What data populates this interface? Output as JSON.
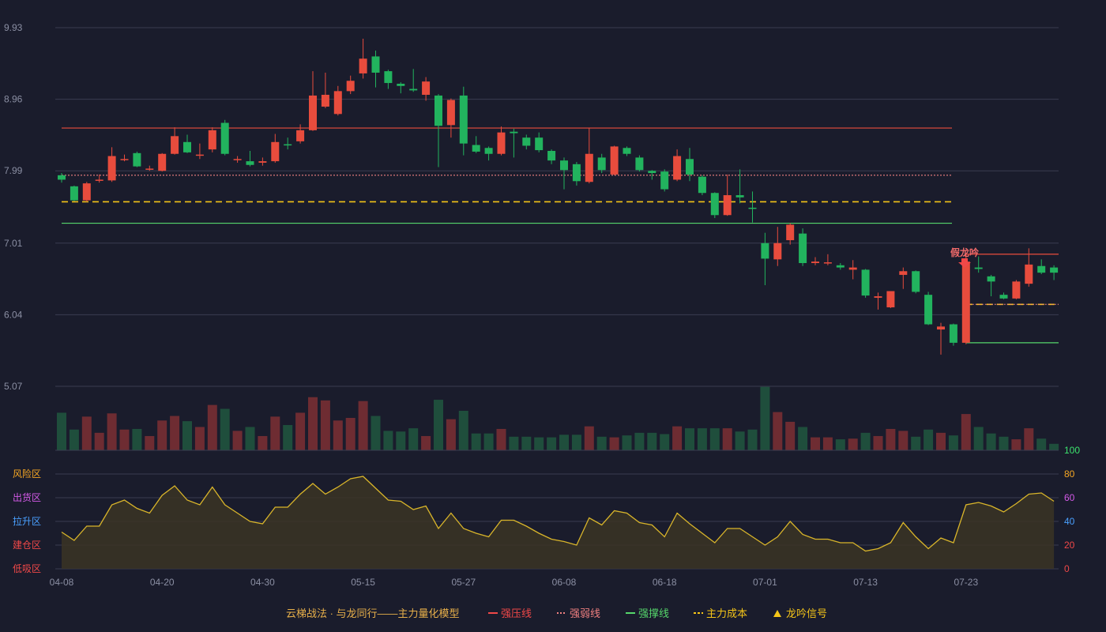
{
  "chart_data": {
    "type": "candlestick",
    "price_axis": {
      "ticks": [
        9.93,
        8.96,
        7.99,
        7.01,
        6.04,
        5.07
      ],
      "range": [
        5.07,
        9.93
      ]
    },
    "x_ticks": [
      "04-08",
      "04-20",
      "04-30",
      "05-15",
      "05-27",
      "06-08",
      "06-18",
      "07-01",
      "07-13",
      "07-23"
    ],
    "x_tick_index": [
      0,
      8,
      16,
      24,
      32,
      40,
      48,
      56,
      64,
      72
    ],
    "candles": [
      [
        7.93,
        7.87,
        7.96,
        7.83
      ],
      [
        7.78,
        7.59,
        7.79,
        7.58
      ],
      [
        7.59,
        7.82,
        7.84,
        7.57
      ],
      [
        7.86,
        7.87,
        7.94,
        7.83
      ],
      [
        7.86,
        8.19,
        8.31,
        7.84
      ],
      [
        8.15,
        8.15,
        8.21,
        8.12
      ],
      [
        8.23,
        8.05,
        8.25,
        8.04
      ],
      [
        8.02,
        8.02,
        8.06,
        7.99
      ],
      [
        7.99,
        8.22,
        8.23,
        7.98
      ],
      [
        8.22,
        8.46,
        8.58,
        8.21
      ],
      [
        8.38,
        8.24,
        8.48,
        8.23
      ],
      [
        8.2,
        8.21,
        8.36,
        8.15
      ],
      [
        8.28,
        8.54,
        8.58,
        8.24
      ],
      [
        8.64,
        8.22,
        8.68,
        8.2
      ],
      [
        8.15,
        8.15,
        8.19,
        8.1
      ],
      [
        8.12,
        8.07,
        8.26,
        8.05
      ],
      [
        8.1,
        8.12,
        8.17,
        8.06
      ],
      [
        8.12,
        8.38,
        8.49,
        8.1
      ],
      [
        8.35,
        8.34,
        8.44,
        8.28
      ],
      [
        8.39,
        8.54,
        8.62,
        8.36
      ],
      [
        8.54,
        9.01,
        9.34,
        8.53
      ],
      [
        8.86,
        9.02,
        9.32,
        8.84
      ],
      [
        8.76,
        9.07,
        9.14,
        8.74
      ],
      [
        9.07,
        9.21,
        9.28,
        9.03
      ],
      [
        9.31,
        9.51,
        9.78,
        9.24
      ],
      [
        9.54,
        9.32,
        9.62,
        9.12
      ],
      [
        9.34,
        9.18,
        9.36,
        9.1
      ],
      [
        9.17,
        9.14,
        9.19,
        9.04
      ],
      [
        9.1,
        9.08,
        9.37,
        9.06
      ],
      [
        9.02,
        9.2,
        9.26,
        8.94
      ],
      [
        9.01,
        8.6,
        9.03,
        8.04
      ],
      [
        8.61,
        8.95,
        8.97,
        8.44
      ],
      [
        9.01,
        8.36,
        9.13,
        8.2
      ],
      [
        8.34,
        8.25,
        8.46,
        8.23
      ],
      [
        8.3,
        8.22,
        8.32,
        8.13
      ],
      [
        8.22,
        8.51,
        8.59,
        8.2
      ],
      [
        8.52,
        8.5,
        8.56,
        8.17
      ],
      [
        8.44,
        8.33,
        8.48,
        8.28
      ],
      [
        8.44,
        8.27,
        8.51,
        8.24
      ],
      [
        8.26,
        8.13,
        8.28,
        8.08
      ],
      [
        8.13,
        8.0,
        8.17,
        7.74
      ],
      [
        8.08,
        7.85,
        8.11,
        7.79
      ],
      [
        7.84,
        8.22,
        8.57,
        7.82
      ],
      [
        8.17,
        8.0,
        8.22,
        7.96
      ],
      [
        7.94,
        8.32,
        8.33,
        7.93
      ],
      [
        8.3,
        8.22,
        8.32,
        8.19
      ],
      [
        8.17,
        8.0,
        8.2,
        7.98
      ],
      [
        7.99,
        7.96,
        8.0,
        7.87
      ],
      [
        7.98,
        7.74,
        8.01,
        7.71
      ],
      [
        7.87,
        8.19,
        8.28,
        7.85
      ],
      [
        8.15,
        7.94,
        8.3,
        7.85
      ],
      [
        7.91,
        7.69,
        7.93,
        7.66
      ],
      [
        7.69,
        7.39,
        7.7,
        7.35
      ],
      [
        7.39,
        7.66,
        7.94,
        7.38
      ],
      [
        7.66,
        7.63,
        8.01,
        7.55
      ],
      [
        7.49,
        7.48,
        7.71,
        7.29
      ],
      [
        7.01,
        6.8,
        7.15,
        6.44
      ],
      [
        6.79,
        7.01,
        7.23,
        6.7
      ],
      [
        7.05,
        7.26,
        7.28,
        6.99
      ],
      [
        7.14,
        6.74,
        7.21,
        6.7
      ],
      [
        6.74,
        6.76,
        6.82,
        6.71
      ],
      [
        6.74,
        6.75,
        6.86,
        6.71
      ],
      [
        6.71,
        6.68,
        6.74,
        6.65
      ],
      [
        6.65,
        6.68,
        6.78,
        6.52
      ],
      [
        6.65,
        6.3,
        6.66,
        6.27
      ],
      [
        6.27,
        6.29,
        6.34,
        6.11
      ],
      [
        6.14,
        6.36,
        6.36,
        6.13
      ],
      [
        6.58,
        6.63,
        6.68,
        6.39
      ],
      [
        6.63,
        6.35,
        6.64,
        6.33
      ],
      [
        6.31,
        5.91,
        6.35,
        5.9
      ],
      [
        5.84,
        5.88,
        5.93,
        5.5
      ],
      [
        5.91,
        5.66,
        5.92,
        5.62
      ],
      [
        5.66,
        6.76,
        6.77,
        5.64
      ],
      [
        6.68,
        6.66,
        6.83,
        6.61
      ],
      [
        6.56,
        6.49,
        6.58,
        6.29
      ],
      [
        6.31,
        6.26,
        6.34,
        6.25
      ],
      [
        6.26,
        6.49,
        6.51,
        6.25
      ],
      [
        6.46,
        6.72,
        6.94,
        6.42
      ],
      [
        6.7,
        6.61,
        6.79,
        6.59
      ],
      [
        6.68,
        6.61,
        6.71,
        6.51
      ]
    ],
    "lines": {
      "resistance": {
        "name": "强压线",
        "value": 8.57,
        "color": "#e84c3d"
      },
      "weak": {
        "name": "强弱线",
        "value": 7.93,
        "color": "#f08080"
      },
      "cost": {
        "name": "主力成本",
        "value": 7.57,
        "color": "#f5c518"
      },
      "support": {
        "name": "强撑线",
        "value": 7.28,
        "color": "#55d66b"
      }
    },
    "signal": {
      "text": "假龙吟",
      "index": 72,
      "upper": 6.86,
      "cost": 6.18,
      "support": 5.66
    },
    "volume": [
      0.58,
      0.32,
      0.52,
      0.27,
      0.57,
      0.32,
      0.33,
      0.22,
      0.46,
      0.53,
      0.45,
      0.36,
      0.7,
      0.64,
      0.3,
      0.36,
      0.22,
      0.52,
      0.39,
      0.58,
      0.82,
      0.77,
      0.46,
      0.5,
      0.76,
      0.53,
      0.3,
      0.29,
      0.34,
      0.22,
      0.78,
      0.48,
      0.61,
      0.26,
      0.26,
      0.33,
      0.21,
      0.21,
      0.2,
      0.2,
      0.24,
      0.24,
      0.37,
      0.21,
      0.2,
      0.23,
      0.27,
      0.27,
      0.25,
      0.37,
      0.34,
      0.34,
      0.34,
      0.34,
      0.29,
      0.32,
      0.98,
      0.59,
      0.44,
      0.36,
      0.2,
      0.2,
      0.17,
      0.18,
      0.27,
      0.22,
      0.33,
      0.3,
      0.21,
      0.32,
      0.27,
      0.23,
      0.56,
      0.36,
      0.26,
      0.21,
      0.17,
      0.34,
      0.18,
      0.1
    ],
    "oscillator": {
      "axis_ticks": [
        0,
        20,
        40,
        60,
        80,
        100
      ],
      "axis_colors": [
        "#f04848",
        "#f04848",
        "#4aa0ff",
        "#d45ae8",
        "#f5a623",
        "#3ce36d"
      ],
      "zones": [
        "低吸区",
        "建仓区",
        "拉升区",
        "出货区",
        "风险区"
      ],
      "zone_colors": [
        "#f04848",
        "#f04848",
        "#4aa0ff",
        "#d45ae8",
        "#f5a623"
      ],
      "values": [
        31,
        24,
        36,
        36,
        54,
        58,
        51,
        47,
        62,
        70,
        58,
        54,
        69,
        54,
        47,
        40,
        38,
        52,
        52,
        63,
        72,
        63,
        69,
        76,
        78,
        68,
        58,
        57,
        50,
        53,
        34,
        47,
        34,
        30,
        27,
        41,
        41,
        36,
        30,
        25,
        23,
        20,
        43,
        37,
        49,
        47,
        39,
        37,
        27,
        47,
        38,
        30,
        22,
        34,
        34,
        27,
        20,
        27,
        40,
        29,
        25,
        25,
        22,
        22,
        15,
        17,
        22,
        39,
        27,
        17,
        26,
        22,
        54,
        56,
        53,
        48,
        55,
        63,
        64,
        57
      ]
    },
    "legend": {
      "title": "云梯战法 · 与龙同行——主力量化模型",
      "items": [
        {
          "label": "强压线",
          "color": "#f04848",
          "style": "solid"
        },
        {
          "label": "强弱线",
          "color": "#f08080",
          "style": "dotted"
        },
        {
          "label": "强撑线",
          "color": "#55d66b",
          "style": "solid"
        },
        {
          "label": "主力成本",
          "color": "#f5c518",
          "style": "dashed"
        },
        {
          "label": "龙吟信号",
          "color": "#f5c518",
          "style": "triangle"
        }
      ]
    },
    "colors": {
      "up": "#e84c3d",
      "down": "#22b35e",
      "up_vol": "#6e2c32",
      "down_vol": "#1f4e3c",
      "osc_line": "#d9b52a"
    }
  }
}
